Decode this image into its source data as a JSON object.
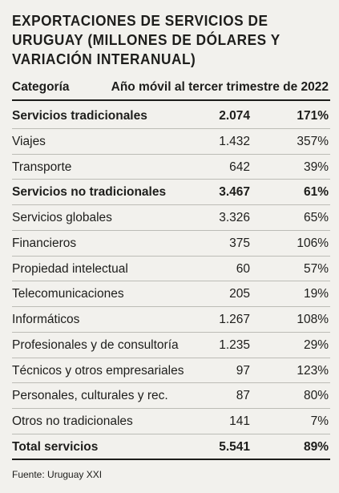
{
  "title": "EXPORTACIONES DE SERVICIOS DE URUGUAY (MILLONES DE DÓLARES Y VARIACIÓN INTERANUAL)",
  "header": {
    "category": "Categoría",
    "period": "Año móvil al tercer trimestre de 2022"
  },
  "rows": [
    {
      "label": "Servicios tradicionales",
      "value": "2.074",
      "change": "171%",
      "bold": true
    },
    {
      "label": "Viajes",
      "value": "1.432",
      "change": "357%"
    },
    {
      "label": "Transporte",
      "value": "642",
      "change": "39%"
    },
    {
      "label": "Servicios no tradicionales",
      "value": "3.467",
      "change": "61%",
      "bold": true
    },
    {
      "label": "Servicios globales",
      "value": "3.326",
      "change": "65%"
    },
    {
      "label": "Financieros",
      "value": "375",
      "change": "106%"
    },
    {
      "label": "Propiedad intelectual",
      "value": "60",
      "change": "57%"
    },
    {
      "label": "Telecomunicaciones",
      "value": "205",
      "change": "19%"
    },
    {
      "label": "Informáticos",
      "value": "1.267",
      "change": "108%"
    },
    {
      "label": "Profesionales y de consultoría",
      "value": "1.235",
      "change": "29%"
    },
    {
      "label": "Técnicos y otros empresariales",
      "value": "97",
      "change": "123%"
    },
    {
      "label": "Personales, culturales y rec.",
      "value": "87",
      "change": "80%"
    },
    {
      "label": "Otros no tradicionales",
      "value": "141",
      "change": "7%"
    },
    {
      "label": "Total servicios",
      "value": "5.541",
      "change": "89%",
      "bold": true
    }
  ],
  "source": "Fuente: Uruguay XXI"
}
